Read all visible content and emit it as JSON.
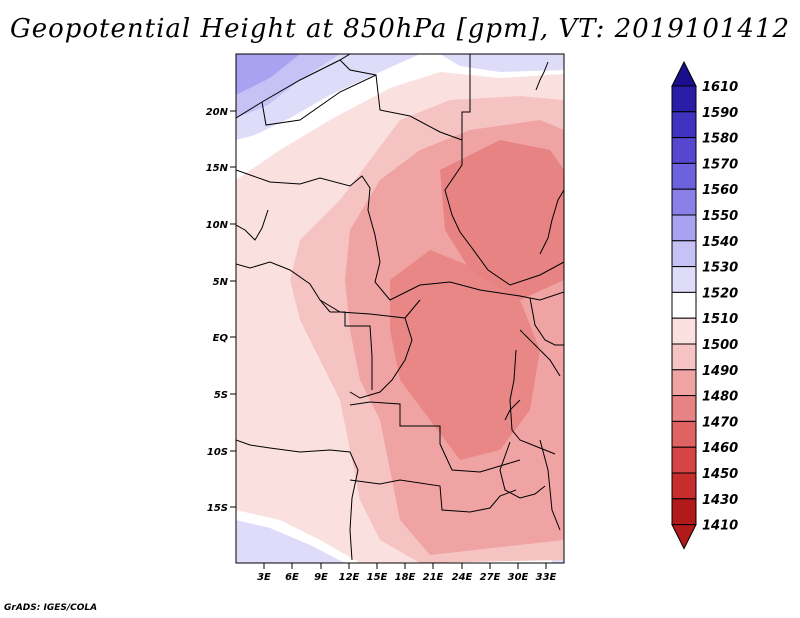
{
  "title": "Geopotential Height at 850hPa [gpm], VT: 2019101412",
  "footer": "GrADS: IGES/COLA",
  "map": {
    "lat_labels": [
      "20N",
      "15N",
      "10N",
      "5N",
      "EQ",
      "5S",
      "10S",
      "15S"
    ],
    "lon_labels": [
      "3E",
      "6E",
      "9E",
      "12E",
      "15E",
      "18E",
      "21E",
      "24E",
      "27E",
      "30E",
      "33E"
    ]
  },
  "colorbar": {
    "levels": [
      "1610",
      "1590",
      "1580",
      "1570",
      "1560",
      "1550",
      "1540",
      "1530",
      "1520",
      "1510",
      "1500",
      "1490",
      "1480",
      "1470",
      "1460",
      "1450",
      "1430",
      "1410"
    ],
    "colors": [
      "#1a0e8c",
      "#2a1ea8",
      "#3f33bf",
      "#5548cf",
      "#6d62dd",
      "#8a80e8",
      "#a9a2f0",
      "#c6c2f5",
      "#dedcf8",
      "#ffffff",
      "#fbe0e0",
      "#f6c3c3",
      "#f0a3a3",
      "#e88383",
      "#df6363",
      "#d54545",
      "#c82d2d",
      "#b01a1a"
    ]
  }
}
